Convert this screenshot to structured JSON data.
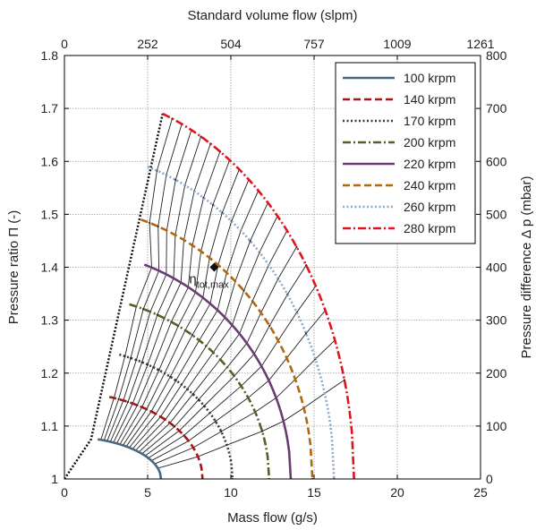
{
  "chart_data": {
    "type": "line",
    "xlabel": "Mass flow (g/s)",
    "x2label": "Standard volume flow (slpm)",
    "ylabel": "Pressure ratio Π (-)",
    "y2label": "Pressure difference Δ p (mbar)",
    "xlim": [
      0,
      25
    ],
    "ylim": [
      1,
      1.8
    ],
    "y2lim": [
      0,
      800
    ],
    "xticks": [
      "0",
      "5",
      "10",
      "15",
      "20",
      "25"
    ],
    "x2ticks": [
      "0",
      "252",
      "504",
      "757",
      "1009",
      "1261"
    ],
    "yticks": [
      "1",
      "1.1",
      "1.2",
      "1.3",
      "1.4",
      "1.5",
      "1.6",
      "1.7",
      "1.8"
    ],
    "y2ticks": [
      "0",
      "100",
      "200",
      "300",
      "400",
      "500",
      "600",
      "700",
      "800"
    ],
    "grid": true,
    "legend_position": "top-right",
    "series": [
      {
        "name": "100 krpm",
        "color": "#4a6780",
        "dash": "solid",
        "surge_x": 2.0,
        "surge_y": 1.075,
        "choke_x": 5.8
      },
      {
        "name": "140 krpm",
        "color": "#a4161a",
        "dash": "dashed",
        "surge_x": 2.7,
        "surge_y": 1.155,
        "choke_x": 8.3
      },
      {
        "name": "170 krpm",
        "color": "#3a3a3a",
        "dash": "dotted",
        "surge_x": 3.3,
        "surge_y": 1.235,
        "choke_x": 10.1
      },
      {
        "name": "200 krpm",
        "color": "#4f6228",
        "dash": "dashdot",
        "surge_x": 3.9,
        "surge_y": 1.33,
        "choke_x": 12.3
      },
      {
        "name": "220 krpm",
        "color": "#6b3c73",
        "dash": "solid",
        "surge_x": 4.8,
        "surge_y": 1.405,
        "choke_x": 13.6
      },
      {
        "name": "240 krpm",
        "color": "#b0670e",
        "dash": "dashed",
        "surge_x": 4.6,
        "surge_y": 1.49,
        "choke_x": 14.9
      },
      {
        "name": "260 krpm",
        "color": "#8ea9c8",
        "dash": "dotted",
        "surge_x": 5.0,
        "surge_y": 1.59,
        "choke_x": 16.2
      },
      {
        "name": "280 krpm",
        "color": "#e0141e",
        "dash": "dashdot",
        "surge_x": 5.9,
        "surge_y": 1.69,
        "choke_x": 17.4
      }
    ],
    "efficiency_lines": 20,
    "surge_line": [
      [
        0,
        1.0
      ],
      [
        1.6,
        1.075
      ],
      [
        5.9,
        1.69
      ]
    ],
    "annotations": [
      {
        "text": "η",
        "subscript": "tot,max",
        "x": 9.0,
        "y": 1.4
      }
    ]
  }
}
